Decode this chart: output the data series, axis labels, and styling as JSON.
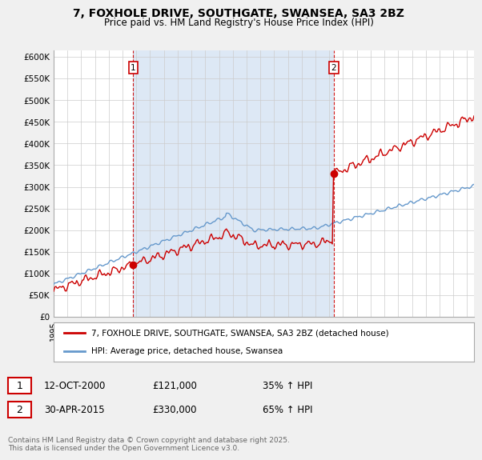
{
  "title": "7, FOXHOLE DRIVE, SOUTHGATE, SWANSEA, SA3 2BZ",
  "subtitle": "Price paid vs. HM Land Registry's House Price Index (HPI)",
  "ylabel_ticks": [
    "£0",
    "£50K",
    "£100K",
    "£150K",
    "£200K",
    "£250K",
    "£300K",
    "£350K",
    "£400K",
    "£450K",
    "£500K",
    "£550K",
    "£600K"
  ],
  "ytick_values": [
    0,
    50000,
    100000,
    150000,
    200000,
    250000,
    300000,
    350000,
    400000,
    450000,
    500000,
    550000,
    600000
  ],
  "x_start_year": 1995.0,
  "x_end_year": 2025.5,
  "purchase1_year": 2000.78,
  "purchase1_price": 121000,
  "purchase1_date": "12-OCT-2000",
  "purchase1_pct": "35% ↑ HPI",
  "purchase2_year": 2015.33,
  "purchase2_price": 330000,
  "purchase2_date": "30-APR-2015",
  "purchase2_pct": "65% ↑ HPI",
  "line1_color": "#cc0000",
  "line2_color": "#6699cc",
  "shade_color": "#dde8f5",
  "vline_color": "#cc0000",
  "marker_color": "#cc0000",
  "background_color": "#f0f0f0",
  "plot_bg_color": "#ffffff",
  "grid_color": "#cccccc",
  "legend_label1": "7, FOXHOLE DRIVE, SOUTHGATE, SWANSEA, SA3 2BZ (detached house)",
  "legend_label2": "HPI: Average price, detached house, Swansea",
  "footnote": "Contains HM Land Registry data © Crown copyright and database right 2025.\nThis data is licensed under the Open Government Licence v3.0."
}
